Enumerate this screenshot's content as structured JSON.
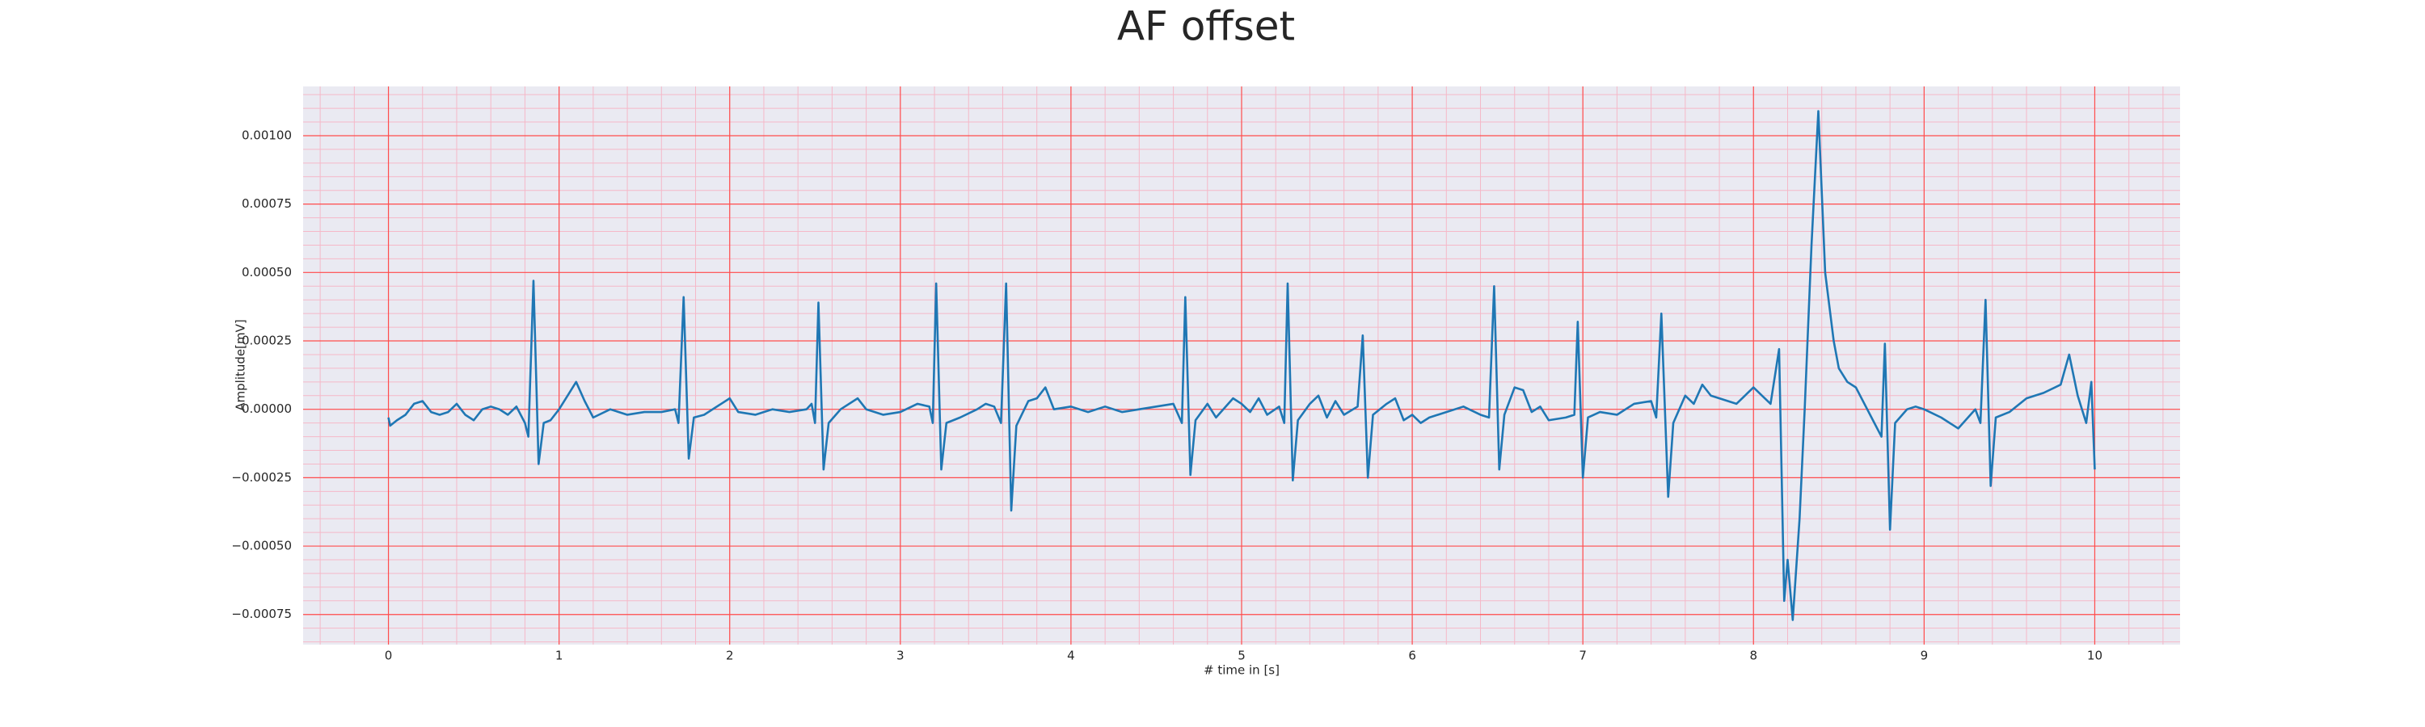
{
  "chart_data": {
    "type": "line",
    "title": "AF offset",
    "xlabel": "# time in [s]",
    "ylabel": "Amplitude[mV]",
    "color": "#1f77b4",
    "background": "#eaeaf2",
    "grid": true,
    "grid_color": "#ff4d4d",
    "minor_grid": {
      "xstep": 0.2,
      "ystep": 5e-05,
      "color": "#f5b8c8"
    },
    "xlim": [
      -0.5,
      10.5
    ],
    "ylim": [
      -0.00086,
      0.00118
    ],
    "xticks": [
      0,
      1,
      2,
      3,
      4,
      5,
      6,
      7,
      8,
      9,
      10
    ],
    "yticks": [
      {
        "value": -0.00075,
        "label": "−0.00075"
      },
      {
        "value": -0.0005,
        "label": "−0.00050"
      },
      {
        "value": -0.00025,
        "label": "−0.00025"
      },
      {
        "value": 0,
        "label": "0.00000"
      },
      {
        "value": 0.00025,
        "label": "0.00025"
      },
      {
        "value": 0.0005,
        "label": "0.00050"
      },
      {
        "value": 0.00075,
        "label": "0.00075"
      },
      {
        "value": 0.001,
        "label": "0.00100"
      }
    ],
    "x": [
      0.0,
      0.01,
      0.05,
      0.1,
      0.15,
      0.2,
      0.25,
      0.3,
      0.35,
      0.4,
      0.45,
      0.5,
      0.55,
      0.6,
      0.65,
      0.7,
      0.75,
      0.8,
      0.82,
      0.85,
      0.88,
      0.91,
      0.95,
      1.0,
      1.05,
      1.1,
      1.15,
      1.2,
      1.3,
      1.4,
      1.5,
      1.6,
      1.68,
      1.7,
      1.73,
      1.76,
      1.79,
      1.85,
      1.95,
      2.0,
      2.05,
      2.15,
      2.25,
      2.35,
      2.45,
      2.48,
      2.5,
      2.52,
      2.55,
      2.58,
      2.65,
      2.75,
      2.8,
      2.9,
      3.0,
      3.1,
      3.17,
      3.19,
      3.21,
      3.24,
      3.27,
      3.35,
      3.45,
      3.5,
      3.55,
      3.59,
      3.62,
      3.65,
      3.68,
      3.75,
      3.8,
      3.85,
      3.9,
      4.0,
      4.1,
      4.2,
      4.3,
      4.4,
      4.5,
      4.6,
      4.65,
      4.67,
      4.7,
      4.73,
      4.8,
      4.85,
      4.95,
      5.0,
      5.05,
      5.1,
      5.15,
      5.22,
      5.25,
      5.27,
      5.3,
      5.33,
      5.4,
      5.45,
      5.5,
      5.55,
      5.6,
      5.68,
      5.71,
      5.74,
      5.77,
      5.85,
      5.9,
      5.95,
      6.0,
      6.05,
      6.1,
      6.2,
      6.3,
      6.4,
      6.45,
      6.48,
      6.51,
      6.54,
      6.6,
      6.65,
      6.7,
      6.75,
      6.8,
      6.9,
      6.95,
      6.97,
      7.0,
      7.03,
      7.1,
      7.2,
      7.3,
      7.4,
      7.43,
      7.46,
      7.5,
      7.53,
      7.6,
      7.65,
      7.7,
      7.75,
      7.8,
      7.9,
      8.0,
      8.05,
      8.1,
      8.15,
      8.18,
      8.2,
      8.23,
      8.27,
      8.3,
      8.34,
      8.38,
      8.42,
      8.47,
      8.5,
      8.55,
      8.6,
      8.65,
      8.7,
      8.75,
      8.77,
      8.8,
      8.83,
      8.9,
      8.95,
      9.0,
      9.1,
      9.2,
      9.3,
      9.33,
      9.36,
      9.39,
      9.42,
      9.5,
      9.6,
      9.7,
      9.8,
      9.85,
      9.9,
      9.95,
      9.98,
      10.0
    ],
    "values": [
      -3e-05,
      -6e-05,
      -4e-05,
      -2e-05,
      2e-05,
      3e-05,
      -1e-05,
      -2e-05,
      -1e-05,
      2e-05,
      -2e-05,
      -4e-05,
      0.0,
      1e-05,
      0.0,
      -2e-05,
      1e-05,
      -5e-05,
      -0.0001,
      0.00047,
      -0.0002,
      -5e-05,
      -4e-05,
      0.0,
      5e-05,
      0.0001,
      3e-05,
      -3e-05,
      0.0,
      -2e-05,
      -1e-05,
      -1e-05,
      0.0,
      -5e-05,
      0.00041,
      -0.00018,
      -3e-05,
      -2e-05,
      2e-05,
      4e-05,
      -1e-05,
      -2e-05,
      0.0,
      -1e-05,
      0.0,
      2e-05,
      -5e-05,
      0.00039,
      -0.00022,
      -5e-05,
      0.0,
      4e-05,
      0.0,
      -2e-05,
      -1e-05,
      2e-05,
      1e-05,
      -5e-05,
      0.00046,
      -0.00022,
      -5e-05,
      -3e-05,
      0.0,
      2e-05,
      1e-05,
      -5e-05,
      0.00046,
      -0.00037,
      -6e-05,
      3e-05,
      4e-05,
      8e-05,
      0.0,
      1e-05,
      -1e-05,
      1e-05,
      -1e-05,
      0.0,
      1e-05,
      2e-05,
      -5e-05,
      0.00041,
      -0.00024,
      -4e-05,
      2e-05,
      -3e-05,
      4e-05,
      2e-05,
      -1e-05,
      4e-05,
      -2e-05,
      1e-05,
      -5e-05,
      0.00046,
      -0.00026,
      -4e-05,
      2e-05,
      5e-05,
      -3e-05,
      3e-05,
      -2e-05,
      1e-05,
      0.00027,
      -0.00025,
      -2e-05,
      2e-05,
      4e-05,
      -4e-05,
      -2e-05,
      -5e-05,
      -3e-05,
      -1e-05,
      1e-05,
      -2e-05,
      -3e-05,
      0.00045,
      -0.00022,
      -2e-05,
      8e-05,
      7e-05,
      -1e-05,
      1e-05,
      -4e-05,
      -3e-05,
      -2e-05,
      0.00032,
      -0.00025,
      -3e-05,
      -1e-05,
      -2e-05,
      2e-05,
      3e-05,
      -3e-05,
      0.00035,
      -0.00032,
      -5e-05,
      5e-05,
      2e-05,
      9e-05,
      5e-05,
      4e-05,
      2e-05,
      8e-05,
      5e-05,
      2e-05,
      0.00022,
      -0.0007,
      -0.00055,
      -0.00077,
      -0.0004,
      0.0,
      0.0006,
      0.00109,
      0.0005,
      0.00025,
      0.00015,
      0.0001,
      8e-05,
      2e-05,
      -4e-05,
      -0.0001,
      0.00024,
      -0.00044,
      -5e-05,
      0.0,
      1e-05,
      0.0,
      -3e-05,
      -7e-05,
      0.0,
      -5e-05,
      0.0004,
      -0.00028,
      -3e-05,
      -1e-05,
      4e-05,
      6e-05,
      9e-05,
      0.0002,
      5e-05,
      -5e-05,
      0.0001,
      -0.00022
    ]
  }
}
